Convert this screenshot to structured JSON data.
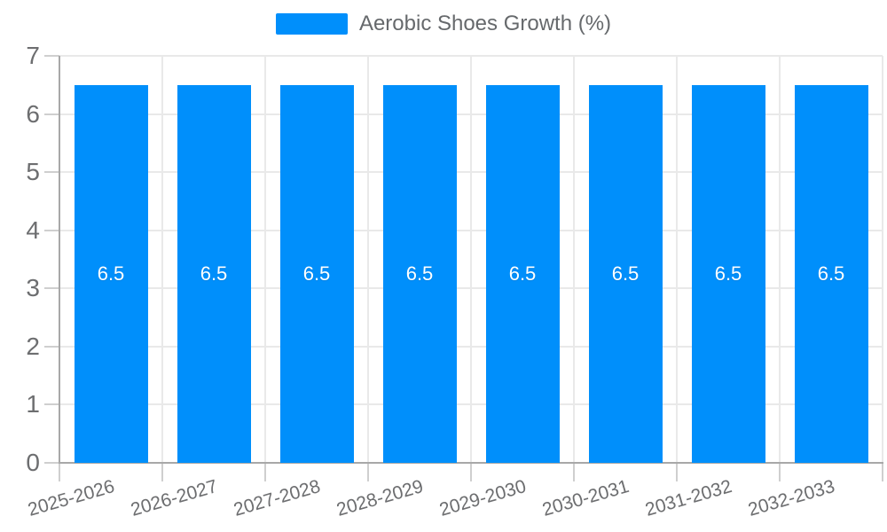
{
  "legend": {
    "label": "Aerobic Shoes Growth (%)",
    "marker_color": "#008FFB"
  },
  "chart_data": {
    "type": "bar",
    "title": "Aerobic Shoes Growth (%)",
    "categories": [
      "2025-2026",
      "2026-2027",
      "2027-2028",
      "2028-2029",
      "2029-2030",
      "2030-2031",
      "2031-2032",
      "2032-2033"
    ],
    "series": [
      {
        "name": "Aerobic Shoes Growth (%)",
        "values": [
          6.5,
          6.5,
          6.5,
          6.5,
          6.5,
          6.5,
          6.5,
          6.5
        ]
      }
    ],
    "data_labels": [
      "6.5",
      "6.5",
      "6.5",
      "6.5",
      "6.5",
      "6.5",
      "6.5",
      "6.5"
    ],
    "xlabel": "",
    "ylabel": "",
    "ylim": [
      0,
      7
    ],
    "yticks": [
      0,
      1,
      2,
      3,
      4,
      5,
      6,
      7
    ],
    "grid": true,
    "legend_position": "top",
    "bar_color": "#008FFB",
    "xlabel_rotation_deg": -16
  }
}
